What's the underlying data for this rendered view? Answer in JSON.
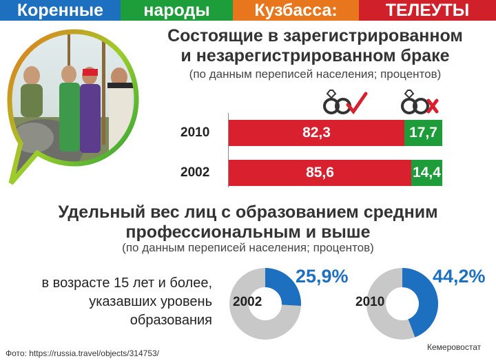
{
  "banner": {
    "words": [
      "Коренные",
      "народы",
      "Кузбасса:",
      "ТЕЛЕУТЫ"
    ],
    "colors": [
      "#1d6fc0",
      "#1e9e3a",
      "#e8761c",
      "#d0202a"
    ]
  },
  "section1": {
    "title_line1": "Состоящие в зарегистрированном",
    "title_line2": "и незарегистрированном браке",
    "subtitle": "(по данным переписей населения; процентов)"
  },
  "section2": {
    "title_line1": "Удельный вес лиц с образованием средним",
    "title_line2": "профессиональным и выше",
    "subtitle": "(по данным переписей населения; процентов)",
    "description_lines": [
      "в возрасте 15 лет и более,",
      "указавших уровень",
      "образования"
    ]
  },
  "colors": {
    "registered": "#d8202e",
    "unregistered": "#1e9c3a",
    "donut_value": "#1d6fc0",
    "donut_rest": "#c8c8c8"
  },
  "icons": {
    "registered_icon": "rings-check-icon",
    "unregistered_icon": "rings-cross-icon"
  },
  "chart_data": [
    {
      "type": "bar",
      "orientation": "horizontal-stacked",
      "categories": [
        "2010",
        "2002"
      ],
      "series": [
        {
          "values": [
            82.3,
            85.6
          ],
          "labels": [
            "82,3",
            "85,6"
          ]
        },
        {
          "values": [
            17.7,
            14.4
          ],
          "labels": [
            "17,7",
            "14,4"
          ]
        }
      ],
      "xlim": [
        0,
        100
      ]
    },
    {
      "type": "pie",
      "variant": "donut",
      "categories": [
        "2002",
        "2010"
      ],
      "values": [
        25.9,
        44.2
      ],
      "labels": [
        "25,9%",
        "44,2%"
      ]
    }
  ],
  "footer": {
    "source": "Фото: https://russia.travel/objects/314753/",
    "agency": "Кемеровостат"
  }
}
